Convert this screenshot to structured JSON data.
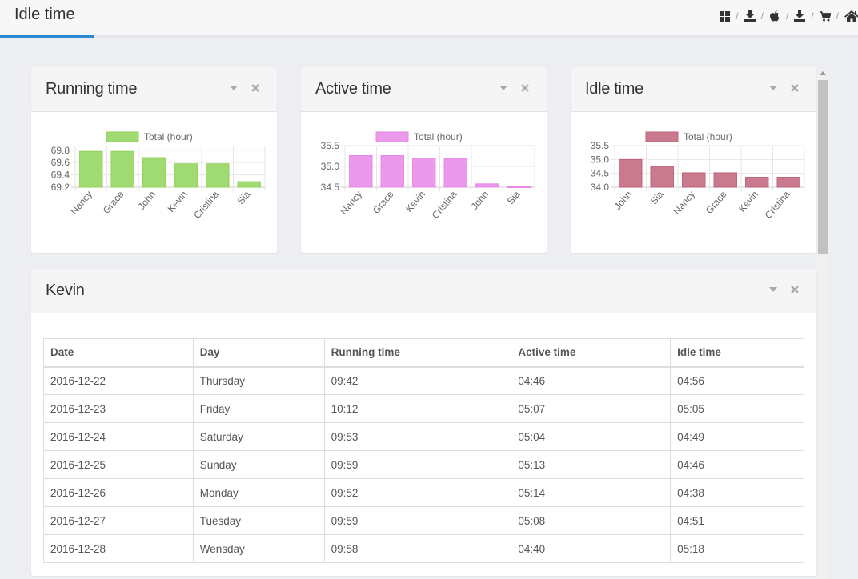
{
  "header": {
    "title": "Idle time",
    "toolbar": [
      {
        "name": "windows-icon"
      },
      {
        "name": "download-icon"
      },
      {
        "name": "apple-icon"
      },
      {
        "name": "download-icon"
      },
      {
        "name": "cart-icon"
      },
      {
        "name": "home-icon"
      }
    ],
    "separator": "/"
  },
  "panels": [
    {
      "title": "Running time",
      "chart_data": {
        "type": "bar",
        "legend": "Total (hour)",
        "color": "#8fd35a",
        "categories": [
          "Nancy",
          "Grace",
          "John",
          "Kevin",
          "Cristina",
          "Sia"
        ],
        "values": [
          69.78,
          69.78,
          69.68,
          69.58,
          69.58,
          69.29
        ],
        "yticks": [
          "69.8",
          "69.6",
          "69.4",
          "69.2"
        ],
        "ylim": [
          69.2,
          69.875
        ]
      }
    },
    {
      "title": "Active time",
      "chart_data": {
        "type": "bar",
        "legend": "Total (hour)",
        "color": "#e887e8",
        "categories": [
          "Nancy",
          "Grace",
          "Kevin",
          "Cristina",
          "John",
          "Sia"
        ],
        "values": [
          35.26,
          35.26,
          35.2,
          35.19,
          34.58,
          34.51
        ],
        "yticks": [
          "35.5",
          "35.0",
          "34.5"
        ],
        "ylim": [
          34.5,
          35.5
        ]
      }
    },
    {
      "title": "Idle time",
      "chart_data": {
        "type": "bar",
        "legend": "Total (hour)",
        "color": "#c0627a",
        "categories": [
          "John",
          "Sia",
          "Nancy",
          "Grace",
          "Kevin",
          "Cristina"
        ],
        "values": [
          35.0,
          34.75,
          34.52,
          34.52,
          34.36,
          34.36
        ],
        "yticks": [
          "35.5",
          "35.0",
          "34.5",
          "34.0"
        ],
        "ylim": [
          34.0,
          35.5
        ]
      }
    }
  ],
  "table_panel": {
    "title": "Kevin",
    "columns": [
      "Date",
      "Day",
      "Running time",
      "Active time",
      "Idle time"
    ],
    "rows": [
      [
        "2016-12-22",
        "Thursday",
        "09:42",
        "04:46",
        "04:56"
      ],
      [
        "2016-12-23",
        "Friday",
        "10:12",
        "05:07",
        "05:05"
      ],
      [
        "2016-12-24",
        "Saturday",
        "09:53",
        "05:04",
        "04:49"
      ],
      [
        "2016-12-25",
        "Sunday",
        "09:59",
        "05:13",
        "04:46"
      ],
      [
        "2016-12-26",
        "Monday",
        "09:52",
        "05:14",
        "04:38"
      ],
      [
        "2016-12-27",
        "Tuesday",
        "09:59",
        "05:08",
        "04:51"
      ],
      [
        "2016-12-28",
        "Wensday",
        "09:58",
        "04:40",
        "05:18"
      ]
    ]
  },
  "panel_controls": [
    "chevron-down-icon",
    "close-icon"
  ]
}
